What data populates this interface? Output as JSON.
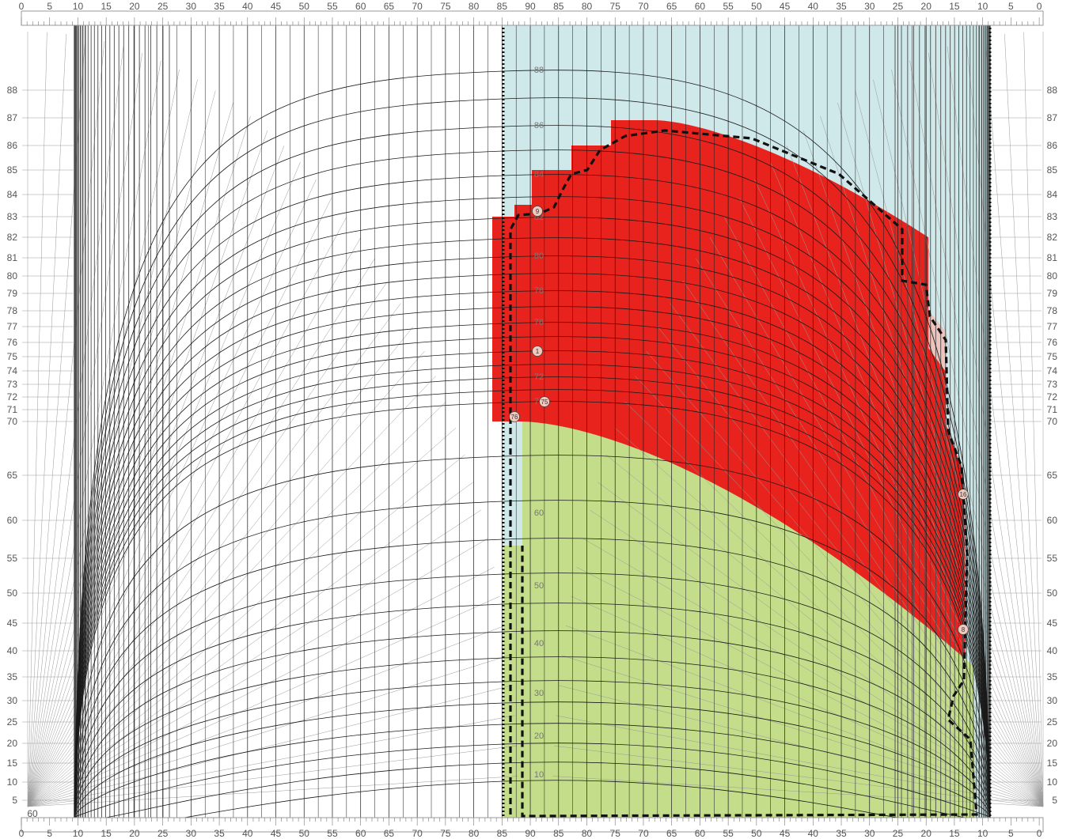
{
  "colors": {
    "frame_bg": "#ffffff",
    "grid_line": "#1a1a1a",
    "fine_line": "#9a9a9a",
    "dense_band": "#4a4a4a",
    "region_sky": "#cfe8ea",
    "region_red": "#e8231d",
    "region_green": "#c3dd8b",
    "region_pink": "#efc4bd",
    "dotted_boundary": "#111111",
    "marker_fill": "#efc9bd",
    "label_color": "#555555"
  },
  "top_scale_labels": [
    "0",
    "5",
    "10",
    "15",
    "20",
    "25",
    "30",
    "35",
    "40",
    "45",
    "50",
    "55",
    "60",
    "65",
    "70",
    "75",
    "80",
    "85",
    "90",
    "85",
    "80",
    "75",
    "70",
    "65",
    "60",
    "55",
    "50",
    "45",
    "40",
    "35",
    "30",
    "25",
    "20",
    "15",
    "10",
    "5",
    "0"
  ],
  "bottom_scale_labels": [
    "0",
    "5",
    "10",
    "15",
    "20",
    "25",
    "30",
    "35",
    "40",
    "45",
    "50",
    "55",
    "60",
    "65",
    "70",
    "75",
    "80",
    "85",
    "90",
    "85",
    "80",
    "75",
    "70",
    "65",
    "60",
    "55",
    "50",
    "45",
    "40",
    "35",
    "30",
    "25",
    "20",
    "15",
    "10",
    "5",
    "0"
  ],
  "side_scale_labels": [
    "88",
    "87",
    "86",
    "85",
    "84",
    "83",
    "82",
    "81",
    "80",
    "79",
    "78",
    "77",
    "76",
    "75",
    "74",
    "73",
    "72",
    "71",
    "70",
    "65",
    "60",
    "55",
    "50",
    "45",
    "40",
    "35",
    "30",
    "25",
    "20",
    "15",
    "10",
    "5"
  ],
  "inner_labels": [
    "88",
    "86",
    "84",
    "82",
    "80",
    "78",
    "76",
    "74",
    "72",
    "70",
    "60",
    "50",
    "40",
    "30",
    "20",
    "10"
  ],
  "corner_label": "60",
  "markers": [
    "9",
    "1",
    "75",
    "76",
    "16",
    "8"
  ]
}
